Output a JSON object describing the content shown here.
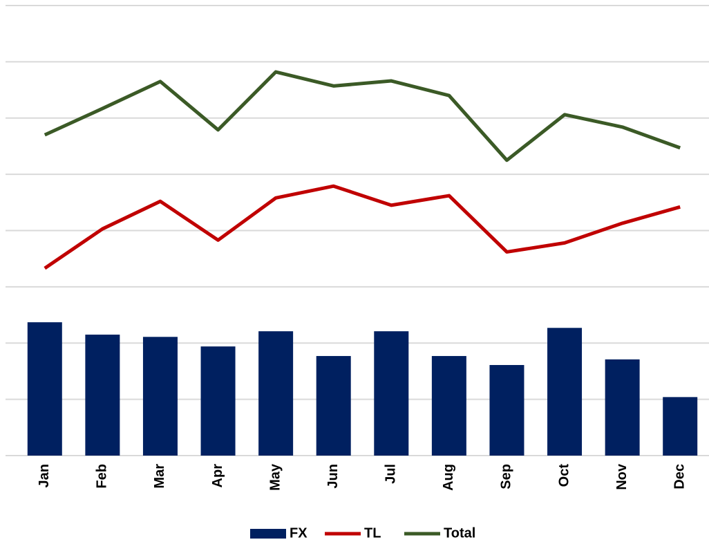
{
  "chart_data": {
    "type": "bar_line",
    "categories": [
      "Jan",
      "Feb",
      "Mar",
      "Apr",
      "May",
      "Jun",
      "Jul",
      "Aug",
      "Sep",
      "Oct",
      "Nov",
      "Dec"
    ],
    "series": [
      {
        "name": "FX",
        "type": "bar",
        "color": "#002060",
        "values": [
          2.37,
          2.15,
          2.11,
          1.94,
          2.21,
          1.77,
          2.21,
          1.77,
          1.61,
          2.27,
          1.71,
          1.04
        ]
      },
      {
        "name": "TL",
        "type": "line",
        "color": "#c00000",
        "values": [
          3.33,
          4.03,
          4.52,
          3.83,
          4.58,
          4.79,
          4.45,
          4.62,
          3.62,
          3.78,
          4.13,
          4.42
        ]
      },
      {
        "name": "Total",
        "type": "line",
        "color": "#3b5a26",
        "values": [
          5.7,
          6.17,
          6.65,
          5.79,
          6.82,
          6.57,
          6.66,
          6.4,
          5.25,
          6.06,
          5.84,
          5.47
        ]
      }
    ],
    "ylim": [
      0,
      8
    ],
    "yticks": [
      0,
      1,
      2,
      3,
      4,
      5,
      6,
      7,
      8
    ],
    "ytick_labels": false,
    "grid": true,
    "legend": "bottom"
  }
}
